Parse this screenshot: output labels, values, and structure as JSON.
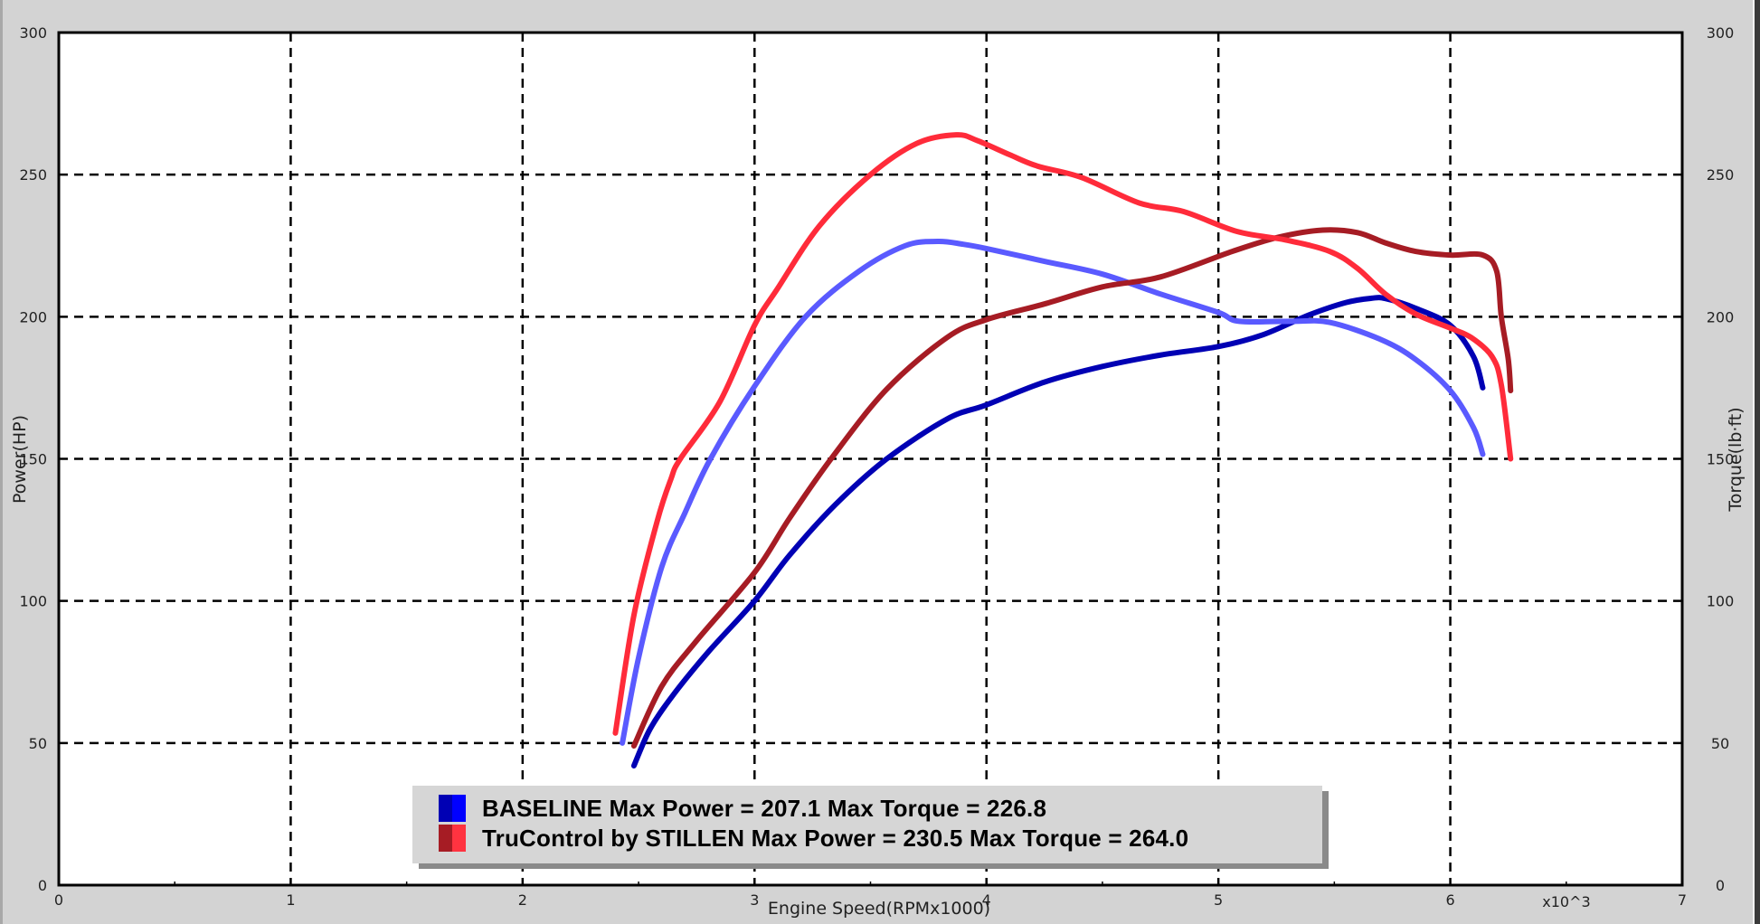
{
  "chart_data": {
    "type": "line",
    "title": "",
    "xlabel": "Engine Speed(RPMx1000)",
    "x_multiplier_label": "x10^3",
    "ylabel": "Power(HP)",
    "y2label": "Torque(lb·ft)",
    "xlim": [
      0,
      7
    ],
    "ylim": [
      0,
      300
    ],
    "y2lim": [
      0,
      300
    ],
    "x_ticks": [
      "0",
      "1",
      "2",
      "3",
      "4",
      "5",
      "6",
      "7"
    ],
    "y_ticks": [
      "0",
      "50",
      "100",
      "150",
      "200",
      "250",
      "300"
    ],
    "y2_ticks": [
      "0",
      "50",
      "100",
      "150",
      "200",
      "250",
      "300"
    ],
    "grid": true,
    "legend_position": "bottom-center inside plot",
    "series": [
      {
        "name": "BASELINE Power",
        "axis": "left",
        "color": "#0000b4",
        "x": [
          2.48,
          2.55,
          2.65,
          2.8,
          3.0,
          3.15,
          3.35,
          3.57,
          3.83,
          4.0,
          4.25,
          4.5,
          4.75,
          5.0,
          5.19,
          5.39,
          5.55,
          5.66,
          5.72,
          5.85,
          6.0,
          6.1,
          6.14
        ],
        "values": [
          42,
          55,
          67,
          82,
          100,
          116,
          134,
          150,
          164,
          169,
          177,
          182.5,
          186.5,
          189.5,
          193.6,
          200.6,
          205,
          206.5,
          206.4,
          203,
          197,
          186,
          175
        ]
      },
      {
        "name": "BASELINE Torque",
        "axis": "right",
        "color": "#5a5aff",
        "x": [
          2.43,
          2.5,
          2.6,
          2.7,
          2.81,
          3.0,
          3.22,
          3.45,
          3.65,
          3.79,
          3.9,
          4.0,
          4.25,
          4.5,
          4.75,
          5.0,
          5.09,
          5.32,
          5.48,
          5.7,
          5.85,
          6.0,
          6.1,
          6.14
        ],
        "values": [
          50,
          80,
          112,
          131,
          150,
          175.5,
          200,
          216,
          225,
          226.5,
          225.5,
          224,
          219.5,
          215,
          208,
          201.5,
          198.4,
          198.4,
          198,
          192,
          185,
          174,
          161,
          151.6
        ]
      },
      {
        "name": "TruControl by STILLEN Power",
        "axis": "left",
        "color": "#a61c24",
        "x": [
          2.48,
          2.6,
          2.75,
          3.0,
          3.15,
          3.33,
          3.57,
          3.83,
          4.0,
          4.25,
          4.5,
          4.75,
          5.06,
          5.26,
          5.45,
          5.6,
          5.72,
          5.85,
          6.0,
          6.14,
          6.2,
          6.22,
          6.25,
          6.26
        ],
        "values": [
          49,
          70,
          86,
          110,
          129,
          150,
          174.5,
          192.7,
          199,
          204.5,
          210.5,
          214,
          223,
          228,
          230.5,
          229.6,
          226,
          223,
          221.7,
          221.7,
          216,
          200,
          185,
          174
        ]
      },
      {
        "name": "TruControl by STILLEN Torque",
        "axis": "right",
        "color": "#ff2b3a",
        "x": [
          2.4,
          2.48,
          2.58,
          2.64,
          2.68,
          2.85,
          3.0,
          3.1,
          3.28,
          3.5,
          3.7,
          3.87,
          3.96,
          4.1,
          4.22,
          4.41,
          4.66,
          4.85,
          5.08,
          5.29,
          5.48,
          5.6,
          5.72,
          5.85,
          6.0,
          6.09,
          6.18,
          6.22,
          6.26
        ],
        "values": [
          53.5,
          95,
          128,
          143,
          150,
          170,
          197,
          210,
          232,
          250,
          261,
          264,
          262,
          257,
          253,
          249,
          240,
          237,
          230,
          227,
          223,
          217,
          208,
          201,
          196,
          192.7,
          186,
          176,
          150
        ]
      }
    ],
    "legend": [
      {
        "label": "BASELINE Max Power = 207.1 Max Torque = 226.8",
        "colors": [
          "#0000b4",
          "#0000ff"
        ]
      },
      {
        "label": "TruControl by STILLEN Max Power = 230.5 Max Torque = 264.0",
        "colors": [
          "#a61c24",
          "#ff3340"
        ]
      }
    ],
    "summary": {
      "baseline_max_power": 207.1,
      "baseline_max_torque": 226.8,
      "stillen_max_power": 230.5,
      "stillen_max_torque": 264.0
    }
  }
}
